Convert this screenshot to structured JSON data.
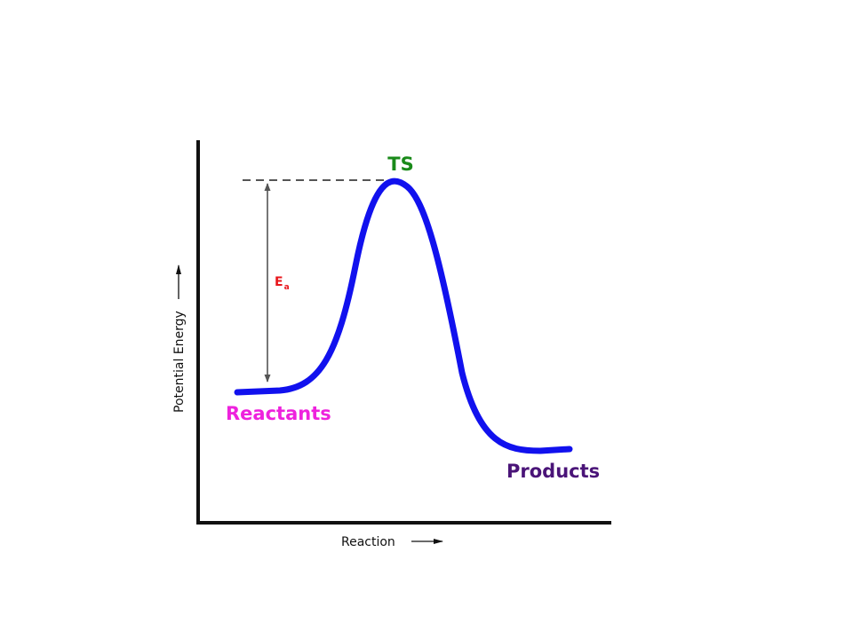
{
  "diagram": {
    "axis_x_label": "Reaction",
    "axis_y_label": "Potential Energy",
    "transition_state_label": "TS",
    "reactants_label": "Reactants",
    "products_label": "Products",
    "activation_energy_label": {
      "main": "E",
      "subscript": "a"
    },
    "colors": {
      "curve": "#1111ee",
      "ts": "#1a8a1a",
      "reactants": "#ee22dd",
      "products": "#4a1478",
      "activation_energy": "#e8161b",
      "axes": "#111111",
      "guide": "#555555"
    }
  }
}
